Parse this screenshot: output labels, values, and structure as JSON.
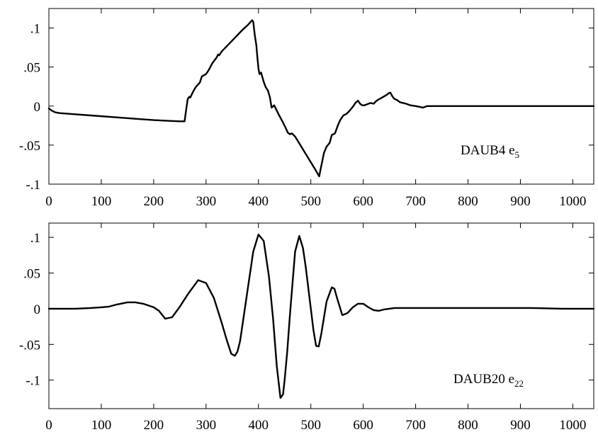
{
  "chart_data": [
    {
      "type": "line",
      "label": "DAUB4 e",
      "label_subscript": "5",
      "xlim": [
        0,
        1040
      ],
      "ylim": [
        -0.1,
        0.125
      ],
      "x_ticks": [
        0,
        100,
        200,
        300,
        400,
        500,
        600,
        700,
        800,
        900,
        1000
      ],
      "x_tick_labels": [
        "0",
        "100",
        "200",
        "300",
        "400",
        "500",
        "600",
        "700",
        "800",
        "900",
        "1000"
      ],
      "y_ticks": [
        -0.1,
        -0.05,
        0,
        0.05,
        0.1
      ],
      "y_tick_labels": [
        "-.1",
        "-.05",
        "0",
        ".05",
        ".1"
      ],
      "series": [
        {
          "x": [
            0,
            6,
            12,
            20,
            40,
            80,
            120,
            160,
            200,
            230,
            250,
            259,
            262,
            265,
            268,
            270,
            275,
            280,
            288,
            292,
            300,
            305,
            312,
            320,
            323,
            325,
            330,
            340,
            350,
            360,
            370,
            380,
            388,
            390,
            393,
            396,
            398,
            400,
            402,
            405,
            410,
            414,
            418,
            422,
            425,
            430,
            438,
            446,
            452,
            456,
            460,
            464,
            470,
            480,
            490,
            500,
            510,
            516,
            518,
            522,
            525,
            530,
            536,
            540,
            546,
            552,
            556,
            562,
            568,
            574,
            580,
            585,
            590,
            594,
            598,
            602,
            606,
            610,
            614,
            620,
            624,
            628,
            636,
            644,
            650,
            652,
            656,
            660,
            664,
            670,
            676,
            682,
            690,
            700,
            708,
            714,
            718,
            722,
            730,
            760,
            800,
            860,
            920,
            980,
            1040
          ],
          "y": [
            -0.003,
            -0.006,
            -0.008,
            -0.009,
            -0.01,
            -0.012,
            -0.014,
            -0.016,
            -0.018,
            -0.019,
            -0.0195,
            -0.0195,
            -0.005,
            0.009,
            0.012,
            0.011,
            0.018,
            0.024,
            0.03,
            0.038,
            0.041,
            0.046,
            0.055,
            0.062,
            0.066,
            0.065,
            0.07,
            0.077,
            0.084,
            0.091,
            0.098,
            0.104,
            0.11,
            0.108,
            0.091,
            0.078,
            0.062,
            0.048,
            0.041,
            0.043,
            0.031,
            0.024,
            0.02,
            0.011,
            -0.002,
            0.001,
            -0.01,
            -0.02,
            -0.028,
            -0.034,
            -0.036,
            -0.035,
            -0.039,
            -0.05,
            -0.061,
            -0.072,
            -0.083,
            -0.09,
            -0.083,
            -0.07,
            -0.06,
            -0.052,
            -0.047,
            -0.037,
            -0.035,
            -0.024,
            -0.018,
            -0.012,
            -0.01,
            -0.006,
            -0.001,
            0.004,
            0.007,
            0.003,
            0.001,
            0.001,
            0.002,
            0.003,
            0.004,
            0.003,
            0.006,
            0.008,
            0.011,
            0.014,
            0.017,
            0.017,
            0.012,
            0.009,
            0.008,
            0.005,
            0.004,
            0.003,
            0.001,
            0.0,
            -0.001,
            -0.002,
            -0.001,
            0.0,
            0.0,
            0.0,
            0.0,
            0.0,
            0.0,
            0.0,
            0.0
          ]
        }
      ]
    },
    {
      "type": "line",
      "label": "DAUB20 e",
      "label_subscript": "22",
      "xlim": [
        0,
        1040
      ],
      "ylim": [
        -0.14,
        0.12
      ],
      "x_ticks": [
        0,
        100,
        200,
        300,
        400,
        500,
        600,
        700,
        800,
        900,
        1000
      ],
      "x_tick_labels": [
        "0",
        "100",
        "200",
        "300",
        "400",
        "500",
        "600",
        "700",
        "800",
        "900",
        "1000"
      ],
      "y_ticks": [
        -0.1,
        -0.05,
        0,
        0.05,
        0.1
      ],
      "y_tick_labels": [
        "-.1",
        "-.05",
        "0",
        ".05",
        ".1"
      ],
      "series": [
        {
          "x": [
            0,
            50,
            80,
            100,
            115,
            130,
            150,
            165,
            180,
            200,
            210,
            222,
            235,
            250,
            265,
            285,
            300,
            315,
            330,
            340,
            348,
            355,
            360,
            365,
            370,
            380,
            390,
            400,
            410,
            420,
            428,
            435,
            442,
            447,
            450,
            455,
            460,
            465,
            470,
            478,
            485,
            490,
            495,
            500,
            505,
            510,
            515,
            520,
            530,
            540,
            545,
            550,
            560,
            570,
            580,
            590,
            600,
            610,
            620,
            630,
            640,
            660,
            700,
            760,
            800,
            860,
            920,
            980,
            1040
          ],
          "y": [
            0.0,
            0.0,
            0.001,
            0.002,
            0.003,
            0.006,
            0.009,
            0.009,
            0.007,
            0.002,
            -0.003,
            -0.014,
            -0.012,
            0.003,
            0.02,
            0.04,
            0.036,
            0.015,
            -0.02,
            -0.045,
            -0.063,
            -0.066,
            -0.06,
            -0.045,
            -0.02,
            0.03,
            0.08,
            0.104,
            0.095,
            0.045,
            -0.015,
            -0.08,
            -0.125,
            -0.12,
            -0.1,
            -0.06,
            -0.01,
            0.035,
            0.08,
            0.102,
            0.085,
            0.06,
            0.03,
            0.0,
            -0.03,
            -0.052,
            -0.053,
            -0.035,
            0.01,
            0.03,
            0.028,
            0.015,
            -0.009,
            -0.006,
            0.002,
            0.007,
            0.007,
            0.002,
            -0.002,
            -0.003,
            -0.001,
            0.001,
            0.001,
            0.001,
            0.001,
            0.001,
            0.001,
            0.0,
            0.0
          ]
        }
      ]
    }
  ]
}
